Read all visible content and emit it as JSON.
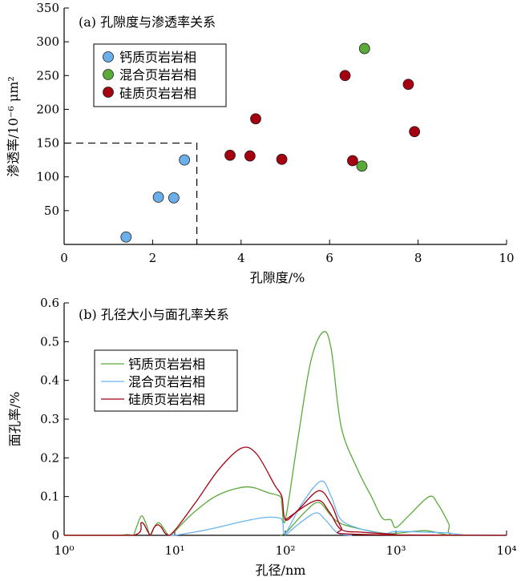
{
  "chart_data": [
    {
      "type": "scatter",
      "title": "(a) 孔隙度与渗透率关系",
      "xlabel": "孔隙度/%",
      "ylabel": "渗透率/10⁻⁶ μm²",
      "xlim": [
        0,
        10
      ],
      "ylim": [
        0,
        350
      ],
      "xticks": [
        0,
        2,
        4,
        6,
        8,
        10
      ],
      "yticks": [
        50,
        100,
        150,
        200,
        250,
        300,
        350
      ],
      "ytick_labels_extra": [
        "0"
      ],
      "grid": false,
      "legend_position": "top-left",
      "cutoff_lines": {
        "x": 3,
        "y": 150,
        "style": "dashed"
      },
      "series": [
        {
          "name": "钙质页岩岩相",
          "color": "#6aaeea",
          "points": [
            [
              1.4,
              11
            ],
            [
              2.13,
              70
            ],
            [
              2.48,
              69
            ],
            [
              2.72,
              125
            ]
          ]
        },
        {
          "name": "混合页岩岩相",
          "color": "#5aaa3a",
          "points": [
            [
              6.79,
              290
            ],
            [
              6.73,
              116
            ]
          ]
        },
        {
          "name": "硅质页岩岩相",
          "color": "#a40010",
          "points": [
            [
              6.35,
              250
            ],
            [
              7.78,
              237
            ],
            [
              4.33,
              186
            ],
            [
              7.92,
              167
            ],
            [
              3.75,
              132
            ],
            [
              4.2,
              131
            ],
            [
              4.92,
              126
            ],
            [
              6.52,
              124
            ]
          ]
        }
      ]
    },
    {
      "type": "line",
      "title": "(b) 孔径大小与面孔率关系",
      "xlabel": "孔径/nm",
      "ylabel": "面孔率/%",
      "xscale": "log",
      "xlim": [
        1,
        10000
      ],
      "ylim": [
        0,
        0.6
      ],
      "xtick_labels": [
        "10⁰",
        "10¹",
        "10²",
        "10³",
        "10⁴"
      ],
      "yticks": [
        "0",
        "0.1",
        "0.2",
        "0.3",
        "0.4",
        "0.5",
        "0.6"
      ],
      "grid": false,
      "legend_position": "top-left",
      "legend": [
        {
          "name": "钙质页岩岩相",
          "color": "#5aaa3a"
        },
        {
          "name": "混合页岩岩相",
          "color": "#6ab4f0"
        },
        {
          "name": "硅质页岩岩相",
          "color": "#a40010"
        }
      ],
      "series": [
        {
          "legend_index": 0,
          "points": [
            [
              1,
              0
            ],
            [
              3,
              0
            ],
            [
              3.7,
              0.002
            ],
            [
              4.2,
              0
            ],
            [
              4.5,
              0.02
            ],
            [
              5,
              0.05
            ],
            [
              5.5,
              0.03
            ],
            [
              6,
              0
            ],
            [
              6.5,
              0.02
            ],
            [
              7,
              0.032
            ],
            [
              7.5,
              0.028
            ],
            [
              8.5,
              0.005
            ],
            [
              9,
              0
            ],
            [
              10,
              0.01
            ],
            [
              15,
              0.06
            ],
            [
              25,
              0.105
            ],
            [
              45,
              0.125
            ],
            [
              70,
              0.11
            ],
            [
              90,
              0.1
            ],
            [
              93,
              0.08
            ],
            [
              100,
              0.04
            ],
            [
              130,
              0.25
            ],
            [
              170,
              0.45
            ],
            [
              220,
              0.525
            ],
            [
              260,
              0.48
            ],
            [
              320,
              0.28
            ],
            [
              450,
              0.17
            ],
            [
              600,
              0.1
            ],
            [
              750,
              0.045
            ],
            [
              900,
              0.04
            ],
            [
              1000,
              0.02
            ],
            [
              1300,
              0.05
            ],
            [
              2000,
              0.1
            ],
            [
              2400,
              0.08
            ],
            [
              3000,
              0.03
            ],
            [
              3300,
              0
            ],
            [
              10000,
              0
            ]
          ]
        },
        {
          "legend_index": 0,
          "points": [
            [
              90,
              0
            ],
            [
              100,
              0.005
            ],
            [
              150,
              0.06
            ],
            [
              200,
              0.085
            ],
            [
              260,
              0.05
            ],
            [
              320,
              0.03
            ],
            [
              500,
              0.015
            ],
            [
              800,
              0.005
            ],
            [
              1000,
              0.005
            ],
            [
              1800,
              0.012
            ],
            [
              2500,
              0.005
            ],
            [
              3000,
              0
            ]
          ]
        },
        {
          "legend_index": 1,
          "points": [
            [
              9,
              0
            ],
            [
              10,
              0
            ],
            [
              20,
              0.015
            ],
            [
              40,
              0.035
            ],
            [
              65,
              0.046
            ],
            [
              90,
              0.044
            ],
            [
              95,
              0.03
            ],
            [
              100,
              0.005
            ],
            [
              140,
              0.08
            ],
            [
              210,
              0.14
            ],
            [
              260,
              0.1
            ],
            [
              320,
              0.04
            ],
            [
              500,
              0.015
            ],
            [
              800,
              0.005
            ],
            [
              1000,
              0.01
            ],
            [
              2000,
              0.008
            ],
            [
              3000,
              0.006
            ],
            [
              4500,
              0
            ],
            [
              10000,
              0
            ]
          ]
        },
        {
          "legend_index": 1,
          "points": [
            [
              100,
              0
            ],
            [
              140,
              0.035
            ],
            [
              190,
              0.058
            ],
            [
              230,
              0.04
            ],
            [
              300,
              0.005
            ],
            [
              400,
              0
            ]
          ]
        },
        {
          "legend_index": 2,
          "points": [
            [
              1,
              0
            ],
            [
              4.2,
              0
            ],
            [
              5,
              0.033
            ],
            [
              5.7,
              0.01
            ],
            [
              6,
              0
            ],
            [
              6.5,
              0.02
            ],
            [
              7,
              0.027
            ],
            [
              7.5,
              0.022
            ],
            [
              9,
              0
            ],
            [
              15,
              0.08
            ],
            [
              25,
              0.17
            ],
            [
              40,
              0.225
            ],
            [
              55,
              0.21
            ],
            [
              80,
              0.13
            ],
            [
              93,
              0.1
            ],
            [
              100,
              0.04
            ],
            [
              130,
              0.065
            ],
            [
              200,
              0.115
            ],
            [
              260,
              0.08
            ],
            [
              320,
              0.02
            ],
            [
              400,
              0.003
            ],
            [
              10000,
              0
            ]
          ]
        },
        {
          "legend_index": 2,
          "points": [
            [
              100,
              0.04
            ],
            [
              190,
              0.09
            ],
            [
              250,
              0.06
            ],
            [
              320,
              0.015
            ],
            [
              500,
              0.008
            ],
            [
              900,
              0.003
            ],
            [
              1000,
              0
            ]
          ]
        }
      ]
    }
  ]
}
